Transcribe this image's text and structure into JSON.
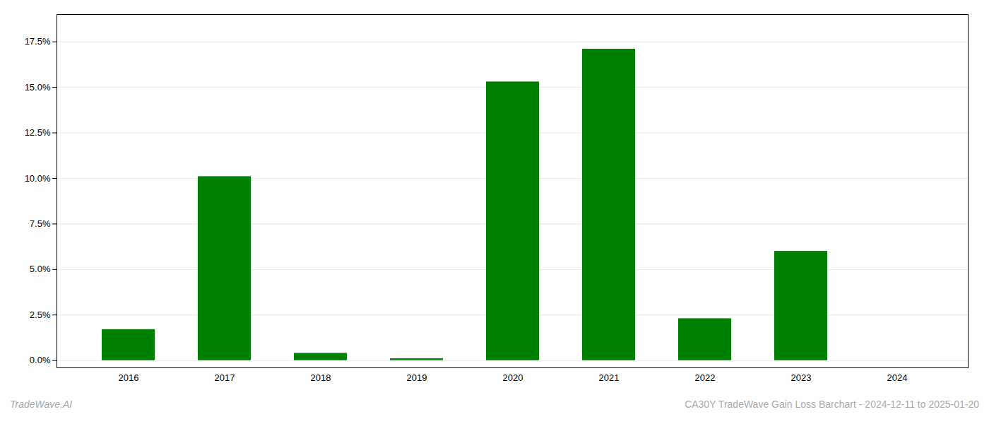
{
  "chart_data": {
    "type": "bar",
    "categories": [
      "2016",
      "2017",
      "2018",
      "2019",
      "2020",
      "2021",
      "2022",
      "2023",
      "2024"
    ],
    "values": [
      0.017,
      0.101,
      0.004,
      0.001,
      0.153,
      0.171,
      0.023,
      0.06,
      0.0
    ],
    "color": "#008000",
    "ylim": [
      -0.004,
      0.19
    ],
    "yticks": [
      {
        "value": 0.0,
        "label": "0.0%"
      },
      {
        "value": 0.025,
        "label": "2.5%"
      },
      {
        "value": 0.05,
        "label": "5.0%"
      },
      {
        "value": 0.075,
        "label": "7.5%"
      },
      {
        "value": 0.1,
        "label": "10.0%"
      },
      {
        "value": 0.125,
        "label": "12.5%"
      },
      {
        "value": 0.15,
        "label": "15.0%"
      },
      {
        "value": 0.175,
        "label": "17.5%"
      }
    ],
    "grid": true,
    "annotations": [
      "TradeWave.AI",
      "CA30Y TradeWave Gain Loss Barchart - 2024-12-11 to 2025-01-20"
    ]
  }
}
